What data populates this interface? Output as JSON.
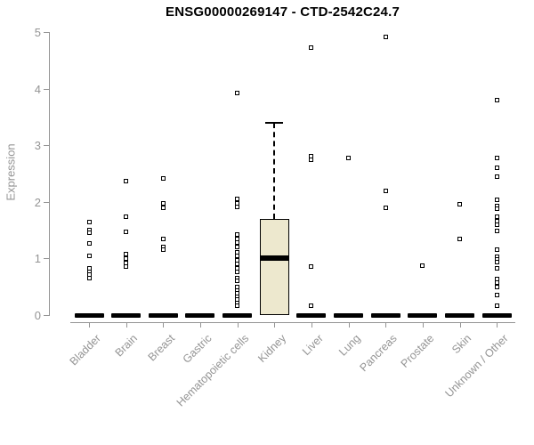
{
  "title": "ENSG00000269147 - CTD-2542C24.7",
  "chart_data": {
    "type": "boxplot",
    "title": "ENSG00000269147 - CTD-2542C24.7",
    "xlabel": "",
    "ylabel": "Expression",
    "ylim": [
      0,
      5
    ],
    "yticks": [
      0,
      1,
      2,
      3,
      4,
      5
    ],
    "grid": false,
    "legend": false,
    "categories": [
      "Bladder",
      "Brain",
      "Breast",
      "Gastric",
      "Hematopoietic cells",
      "Kidney",
      "Liver",
      "Lung",
      "Pancreas",
      "Prostate",
      "Skin",
      "Unknown / Other"
    ],
    "boxes": [
      {
        "category": "Bladder",
        "q1": 0,
        "median": 0,
        "q3": 0,
        "whisker_low": 0,
        "whisker_high": 0,
        "outliers": [
          1.64,
          1.5,
          1.45,
          1.26,
          1.05,
          0.82,
          0.76,
          0.71,
          0.66
        ]
      },
      {
        "category": "Brain",
        "q1": 0,
        "median": 0,
        "q3": 0,
        "whisker_low": 0,
        "whisker_high": 0,
        "outliers": [
          2.37,
          1.73,
          1.47,
          1.08,
          1.0,
          0.92,
          0.85
        ]
      },
      {
        "category": "Breast",
        "q1": 0,
        "median": 0,
        "q3": 0,
        "whisker_low": 0,
        "whisker_high": 0,
        "outliers": [
          2.42,
          1.98,
          1.9,
          1.35,
          1.2,
          1.15
        ]
      },
      {
        "category": "Gastric",
        "q1": 0,
        "median": 0,
        "q3": 0,
        "whisker_low": 0,
        "whisker_high": 0,
        "outliers": []
      },
      {
        "category": "Hematopoietic cells",
        "q1": 0,
        "median": 0,
        "q3": 0,
        "whisker_low": 0,
        "whisker_high": 0,
        "outliers": [
          3.93,
          2.05,
          1.98,
          1.91,
          1.43,
          1.35,
          1.28,
          1.2,
          1.11,
          1.04,
          0.97,
          0.9,
          0.83,
          0.76,
          0.66,
          0.6,
          0.5,
          0.44,
          0.38,
          0.32,
          0.27,
          0.22,
          0.17
        ]
      },
      {
        "category": "Kidney",
        "q1": 0,
        "median": 1.0,
        "q3": 1.7,
        "whisker_low": 0,
        "whisker_high": 3.4,
        "outliers": []
      },
      {
        "category": "Liver",
        "q1": 0,
        "median": 0,
        "q3": 0,
        "whisker_low": 0,
        "whisker_high": 0,
        "outliers": [
          4.72,
          2.8,
          2.74,
          0.85,
          0.16
        ]
      },
      {
        "category": "Lung",
        "q1": 0,
        "median": 0,
        "q3": 0,
        "whisker_low": 0,
        "whisker_high": 0,
        "outliers": [
          2.77
        ]
      },
      {
        "category": "Pancreas",
        "q1": 0,
        "median": 0,
        "q3": 0,
        "whisker_low": 0,
        "whisker_high": 0,
        "outliers": [
          4.91,
          2.19,
          1.89
        ]
      },
      {
        "category": "Prostate",
        "q1": 0,
        "median": 0,
        "q3": 0,
        "whisker_low": 0,
        "whisker_high": 0,
        "outliers": [
          0.88
        ]
      },
      {
        "category": "Skin",
        "q1": 0,
        "median": 0,
        "q3": 0,
        "whisker_low": 0,
        "whisker_high": 0,
        "outliers": [
          1.95,
          1.34
        ]
      },
      {
        "category": "Unknown / Other",
        "q1": 0,
        "median": 0,
        "q3": 0,
        "whisker_low": 0,
        "whisker_high": 0,
        "outliers": [
          3.79,
          2.77,
          2.61,
          2.44,
          2.03,
          1.92,
          1.88,
          1.74,
          1.66,
          1.59,
          1.49,
          1.16,
          1.03,
          0.98,
          0.93,
          0.83,
          0.64,
          0.57,
          0.5,
          0.35,
          0.17
        ]
      }
    ],
    "colors": {
      "box_fill": "#ede8ce",
      "box_border": "#000000",
      "median": "#000000",
      "points": "#000000",
      "axis": "#949494",
      "tick_labels": "#949494",
      "title": "#000000",
      "background": "#ffffff"
    }
  }
}
